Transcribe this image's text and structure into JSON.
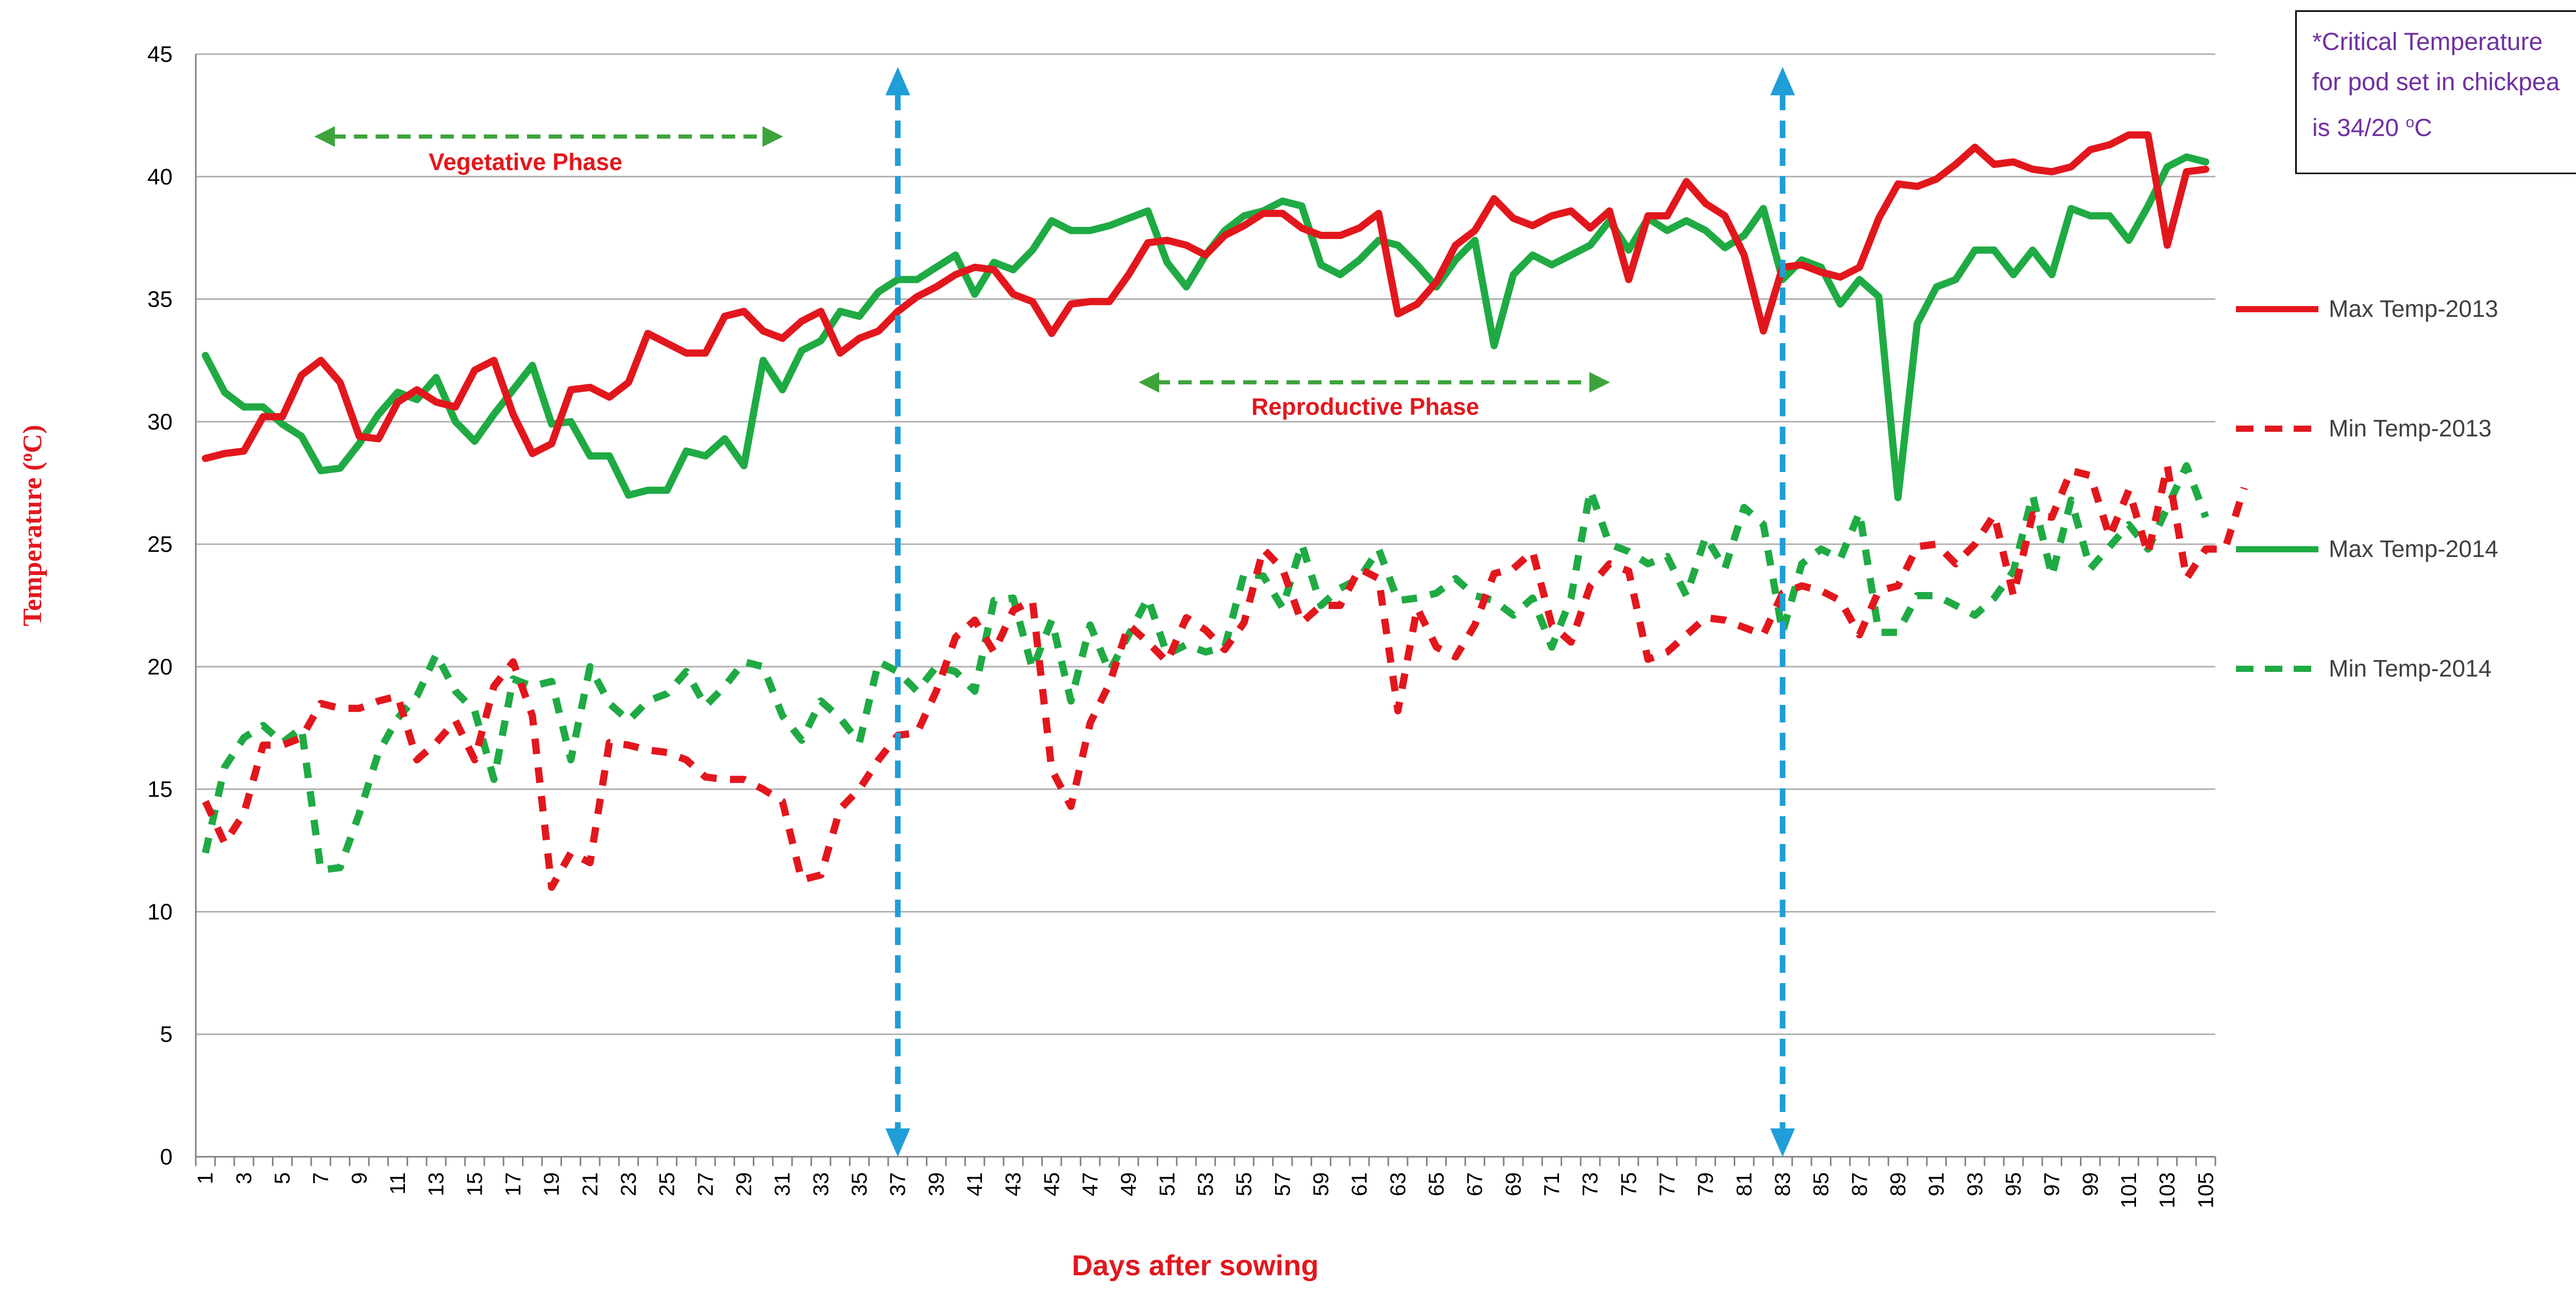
{
  "note": {
    "line1": "*Critical Temperature",
    "line2": "for pod set in chickpea",
    "line3_pre": "is 34/20 ",
    "line3_sup": "o",
    "line3_post": "C"
  },
  "legend": {
    "max2013": "Max Temp-2013",
    "min2013": "Min Temp-2013",
    "max2014": "Max Temp-2014",
    "min2014": "Min Temp-2014"
  },
  "colors": {
    "red": "#e2171d",
    "green": "#1faa44",
    "blue": "#1f9ed8",
    "grid": "#b0b0b0",
    "annot_green": "#3ea33c"
  },
  "chart_data": {
    "type": "line",
    "ylabel": "Temperature (oC)",
    "xlabel": "Days after sowing",
    "ylim": [
      0,
      45
    ],
    "yticks": [
      0,
      5,
      10,
      15,
      20,
      25,
      30,
      35,
      40,
      45
    ],
    "xlim": [
      1,
      105
    ],
    "xticks": [
      1,
      3,
      5,
      7,
      9,
      11,
      13,
      15,
      17,
      19,
      21,
      23,
      25,
      27,
      29,
      31,
      33,
      35,
      37,
      39,
      41,
      43,
      45,
      47,
      49,
      51,
      53,
      55,
      57,
      59,
      61,
      63,
      65,
      67,
      69,
      71,
      73,
      75,
      77,
      79,
      81,
      83,
      85,
      87,
      89,
      91,
      93,
      95,
      97,
      99,
      101,
      103,
      105
    ],
    "grid": "horizontal",
    "legend_position": "right",
    "annotations": {
      "vegetative": "Vegetative Phase",
      "reproductive": "Reproductive Phase",
      "marker_days": [
        37,
        83
      ]
    },
    "series": [
      {
        "name": "Max Temp-2013",
        "style": "solid",
        "color": "#e2171d",
        "values": [
          28.5,
          28.7,
          28.8,
          30.2,
          30.2,
          31.9,
          32.5,
          31.6,
          29.4,
          29.3,
          30.8,
          31.3,
          30.8,
          30.6,
          32.1,
          32.5,
          30.3,
          28.7,
          29.1,
          31.3,
          31.4,
          31.0,
          31.6,
          33.6,
          33.2,
          32.8,
          32.8,
          34.3,
          34.5,
          33.7,
          33.4,
          34.1,
          34.5,
          32.8,
          33.4,
          33.7,
          34.5,
          35.1,
          35.5,
          36.0,
          36.3,
          36.2,
          35.2,
          34.9,
          33.6,
          34.8,
          34.9,
          34.9,
          36.0,
          37.3,
          37.4,
          37.2,
          36.8,
          37.6,
          38.0,
          38.5,
          38.5,
          37.9,
          37.6,
          37.6,
          37.9,
          38.5,
          34.4,
          34.8,
          35.7,
          37.2,
          37.8,
          39.1,
          38.3,
          38.0,
          38.4,
          38.6,
          37.9,
          38.6,
          35.8,
          38.4,
          38.4,
          39.8,
          38.9,
          38.4,
          36.8,
          33.7,
          36.3,
          36.4,
          36.1,
          35.9,
          36.3,
          38.3,
          39.7,
          39.6,
          39.9,
          40.5,
          41.2,
          40.5,
          40.6,
          40.3,
          40.2,
          40.4,
          41.1,
          41.3,
          41.7,
          41.7,
          37.2,
          40.2,
          40.3
        ]
      },
      {
        "name": "Min Temp-2013",
        "style": "dashed",
        "color": "#e2171d",
        "values": [
          14.5,
          12.8,
          14.0,
          16.8,
          16.8,
          17.1,
          18.5,
          18.3,
          18.3,
          18.6,
          18.8,
          16.2,
          16.9,
          17.8,
          16.2,
          19.2,
          20.2,
          18.0,
          11.0,
          12.4,
          12.0,
          16.9,
          16.8,
          16.6,
          16.5,
          16.2,
          15.5,
          15.4,
          15.4,
          15.0,
          14.5,
          11.3,
          11.5,
          14.2,
          15.0,
          16.2,
          17.2,
          17.3,
          19.0,
          21.2,
          21.9,
          20.6,
          22.3,
          22.7,
          15.8,
          14.3,
          17.7,
          19.3,
          21.7,
          21.0,
          20.2,
          22.0,
          21.5,
          20.7,
          21.8,
          24.8,
          24.0,
          21.8,
          22.5,
          22.5,
          24.0,
          23.6,
          18.2,
          22.4,
          20.8,
          20.4,
          21.7,
          23.8,
          24.0,
          24.7,
          21.7,
          21.0,
          23.3,
          24.2,
          23.9,
          20.3,
          20.6,
          21.3,
          22.0,
          21.9,
          21.6,
          21.3,
          23.0,
          23.3,
          23.1,
          22.7,
          21.3,
          23.1,
          23.3,
          24.9,
          25.0,
          24.2,
          25.0,
          26.2,
          22.9,
          26.2,
          26.1,
          28.0,
          27.8,
          25.3,
          27.2,
          24.6,
          28.2,
          23.6,
          24.8,
          24.8,
          27.3
        ]
      },
      {
        "name": "Max Temp-2014",
        "style": "solid",
        "color": "#1faa44",
        "values": [
          32.7,
          31.2,
          30.6,
          30.6,
          29.9,
          29.4,
          28.0,
          28.1,
          29.1,
          30.3,
          31.2,
          30.9,
          31.8,
          30.0,
          29.2,
          30.3,
          31.3,
          32.3,
          29.9,
          30.0,
          28.6,
          28.6,
          27.0,
          27.2,
          27.2,
          28.8,
          28.6,
          29.3,
          28.2,
          32.5,
          31.3,
          32.9,
          33.3,
          34.5,
          34.3,
          35.3,
          35.8,
          35.8,
          36.3,
          36.8,
          35.2,
          36.5,
          36.2,
          37.0,
          38.2,
          37.8,
          37.8,
          38.0,
          38.3,
          38.6,
          36.5,
          35.5,
          36.8,
          37.8,
          38.4,
          38.6,
          39.0,
          38.8,
          36.4,
          36.0,
          36.6,
          37.4,
          37.2,
          36.4,
          35.5,
          36.6,
          37.4,
          33.1,
          36.0,
          36.8,
          36.4,
          36.8,
          37.2,
          38.2,
          37.0,
          38.3,
          37.8,
          38.2,
          37.8,
          37.1,
          37.6,
          38.7,
          35.8,
          36.6,
          36.3,
          34.8,
          35.8,
          35.1,
          26.9,
          34.0,
          35.5,
          35.8,
          37.0,
          37.0,
          36.0,
          37.0,
          36.0,
          38.7,
          38.4,
          38.4,
          37.4,
          38.8,
          40.4,
          40.8,
          40.6
        ]
      },
      {
        "name": "Min Temp-2014",
        "style": "dashed",
        "color": "#1faa44",
        "values": [
          12.4,
          15.9,
          17.1,
          17.6,
          16.9,
          17.5,
          11.7,
          11.8,
          14.0,
          16.5,
          17.9,
          18.8,
          20.5,
          19.0,
          18.2,
          15.4,
          19.5,
          19.2,
          19.4,
          16.2,
          20.0,
          18.5,
          17.8,
          18.6,
          18.9,
          19.8,
          18.4,
          19.2,
          20.2,
          20.0,
          18.0,
          17.0,
          18.6,
          17.9,
          16.9,
          20.2,
          19.8,
          19.0,
          20.0,
          19.8,
          19.0,
          22.7,
          22.8,
          19.9,
          21.9,
          18.6,
          21.7,
          19.8,
          21.3,
          22.8,
          20.5,
          20.9,
          20.6,
          20.8,
          23.8,
          23.7,
          22.4,
          25.0,
          22.5,
          23.2,
          23.6,
          24.8,
          22.7,
          22.8,
          23.0,
          23.6,
          22.9,
          22.7,
          22.1,
          22.8,
          20.8,
          22.8,
          27.2,
          25.0,
          24.7,
          24.2,
          24.5,
          22.9,
          25.3,
          24.0,
          26.5,
          25.8,
          21.4,
          24.2,
          24.8,
          24.4,
          26.3,
          21.4,
          21.4,
          22.9,
          22.9,
          22.5,
          22.1,
          22.8,
          23.9,
          27.0,
          23.7,
          26.8,
          24.0,
          24.9,
          25.8,
          24.8,
          26.5,
          28.2,
          26.1
        ]
      }
    ]
  }
}
